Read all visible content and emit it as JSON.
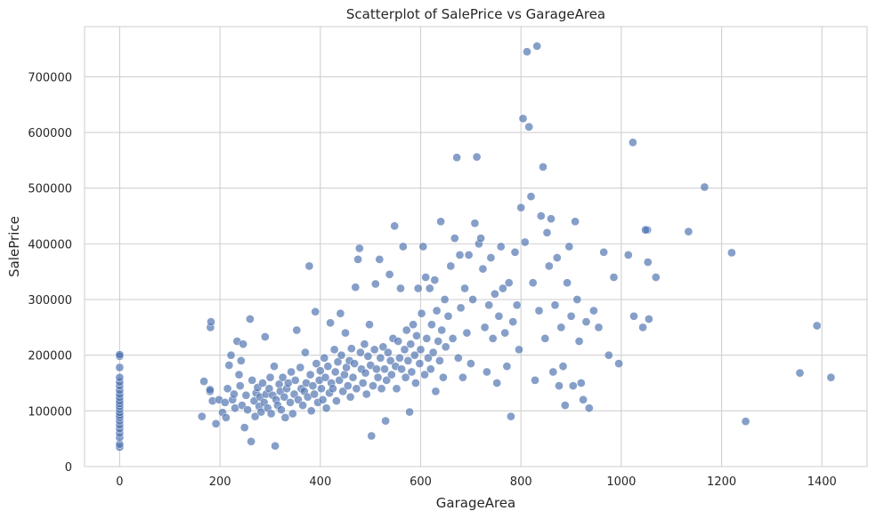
{
  "chart_data": {
    "type": "scatter",
    "title": "Scatterplot of SalePrice vs GarageArea",
    "xlabel": "GarageArea",
    "ylabel": "SalePrice",
    "xlim": [
      -70,
      1490
    ],
    "ylim": [
      0,
      790000
    ],
    "xticks": [
      0,
      200,
      400,
      600,
      800,
      1000,
      1200,
      1400
    ],
    "yticks": [
      0,
      100000,
      200000,
      300000,
      400000,
      500000,
      600000,
      700000
    ],
    "grid": true,
    "point_color": "#4c72b0",
    "series": [
      {
        "points": [
          [
            0,
            35000
          ],
          [
            0,
            40000
          ],
          [
            0,
            52000
          ],
          [
            0,
            60000
          ],
          [
            0,
            68000
          ],
          [
            0,
            75000
          ],
          [
            0,
            82000
          ],
          [
            0,
            88000
          ],
          [
            0,
            92000
          ],
          [
            0,
            97000
          ],
          [
            0,
            103000
          ],
          [
            0,
            108000
          ],
          [
            0,
            113000
          ],
          [
            0,
            118000
          ],
          [
            0,
            124000
          ],
          [
            0,
            130000
          ],
          [
            0,
            137000
          ],
          [
            0,
            145000
          ],
          [
            0,
            152000
          ],
          [
            0,
            160000
          ],
          [
            0,
            178000
          ],
          [
            0,
            198000
          ],
          [
            0,
            201000
          ],
          [
            164,
            90000
          ],
          [
            168,
            153000
          ],
          [
            180,
            135000
          ],
          [
            180,
            138000
          ],
          [
            181,
            250000
          ],
          [
            182,
            260000
          ],
          [
            185,
            118000
          ],
          [
            192,
            77000
          ],
          [
            198,
            120000
          ],
          [
            205,
            97000
          ],
          [
            210,
            115000
          ],
          [
            212,
            88000
          ],
          [
            215,
            140000
          ],
          [
            218,
            182000
          ],
          [
            222,
            200000
          ],
          [
            225,
            120000
          ],
          [
            228,
            130000
          ],
          [
            230,
            105000
          ],
          [
            234,
            225000
          ],
          [
            238,
            165000
          ],
          [
            240,
            145000
          ],
          [
            242,
            190000
          ],
          [
            244,
            110000
          ],
          [
            246,
            220000
          ],
          [
            249,
            70000
          ],
          [
            252,
            128000
          ],
          [
            255,
            102000
          ],
          [
            260,
            265000
          ],
          [
            262,
            45000
          ],
          [
            264,
            155000
          ],
          [
            268,
            118000
          ],
          [
            270,
            90000
          ],
          [
            272,
            132000
          ],
          [
            275,
            142000
          ],
          [
            278,
            108000
          ],
          [
            280,
            125000
          ],
          [
            282,
            98000
          ],
          [
            285,
            150000
          ],
          [
            288,
            115000
          ],
          [
            290,
            233000
          ],
          [
            292,
            130000
          ],
          [
            295,
            105000
          ],
          [
            298,
            140000
          ],
          [
            300,
            160000
          ],
          [
            302,
            95000
          ],
          [
            305,
            128000
          ],
          [
            308,
            180000
          ],
          [
            310,
            37000
          ],
          [
            312,
            120000
          ],
          [
            315,
            110000
          ],
          [
            318,
            148000
          ],
          [
            320,
            135000
          ],
          [
            322,
            102000
          ],
          [
            325,
            160000
          ],
          [
            328,
            125000
          ],
          [
            330,
            88000
          ],
          [
            333,
            140000
          ],
          [
            336,
            150000
          ],
          [
            340,
            115000
          ],
          [
            342,
            170000
          ],
          [
            345,
            95000
          ],
          [
            348,
            130000
          ],
          [
            350,
            155000
          ],
          [
            353,
            245000
          ],
          [
            356,
            120000
          ],
          [
            360,
            178000
          ],
          [
            362,
            140000
          ],
          [
            365,
            110000
          ],
          [
            368,
            135000
          ],
          [
            370,
            205000
          ],
          [
            372,
            150000
          ],
          [
            375,
            125000
          ],
          [
            378,
            360000
          ],
          [
            380,
            165000
          ],
          [
            382,
            100000
          ],
          [
            385,
            145000
          ],
          [
            388,
            130000
          ],
          [
            390,
            278000
          ],
          [
            392,
            185000
          ],
          [
            395,
            115000
          ],
          [
            398,
            155000
          ],
          [
            400,
            172000
          ],
          [
            402,
            140000
          ],
          [
            405,
            120000
          ],
          [
            408,
            195000
          ],
          [
            410,
            160000
          ],
          [
            412,
            105000
          ],
          [
            415,
            180000
          ],
          [
            418,
            132000
          ],
          [
            420,
            258000
          ],
          [
            422,
            150000
          ],
          [
            425,
            140000
          ],
          [
            428,
            210000
          ],
          [
            430,
            170000
          ],
          [
            432,
            118000
          ],
          [
            435,
            188000
          ],
          [
            438,
            155000
          ],
          [
            440,
            275000
          ],
          [
            442,
            200000
          ],
          [
            445,
            135000
          ],
          [
            448,
            165000
          ],
          [
            450,
            240000
          ],
          [
            452,
            178000
          ],
          [
            455,
            145000
          ],
          [
            458,
            190000
          ],
          [
            460,
            125000
          ],
          [
            462,
            212000
          ],
          [
            465,
            160000
          ],
          [
            468,
            185000
          ],
          [
            470,
            322000
          ],
          [
            472,
            140000
          ],
          [
            475,
            372000
          ],
          [
            478,
            392000
          ],
          [
            480,
            205000
          ],
          [
            482,
            175000
          ],
          [
            485,
            150000
          ],
          [
            488,
            220000
          ],
          [
            490,
            168000
          ],
          [
            492,
            130000
          ],
          [
            495,
            198000
          ],
          [
            498,
            255000
          ],
          [
            500,
            182000
          ],
          [
            502,
            55000
          ],
          [
            505,
            145000
          ],
          [
            508,
            210000
          ],
          [
            510,
            328000
          ],
          [
            512,
            175000
          ],
          [
            515,
            160000
          ],
          [
            518,
            372000
          ],
          [
            520,
            195000
          ],
          [
            522,
            140000
          ],
          [
            525,
            215000
          ],
          [
            528,
            175000
          ],
          [
            530,
            82000
          ],
          [
            532,
            155000
          ],
          [
            535,
            205000
          ],
          [
            538,
            345000
          ],
          [
            540,
            190000
          ],
          [
            542,
            165000
          ],
          [
            545,
            230000
          ],
          [
            548,
            432000
          ],
          [
            550,
            180000
          ],
          [
            552,
            140000
          ],
          [
            555,
            225000
          ],
          [
            558,
            195000
          ],
          [
            560,
            320000
          ],
          [
            562,
            175000
          ],
          [
            565,
            395000
          ],
          [
            568,
            210000
          ],
          [
            570,
            160000
          ],
          [
            572,
            245000
          ],
          [
            575,
            190000
          ],
          [
            578,
            98000
          ],
          [
            580,
            220000
          ],
          [
            582,
            170000
          ],
          [
            585,
            255000
          ],
          [
            588,
            200000
          ],
          [
            590,
            150000
          ],
          [
            592,
            235000
          ],
          [
            595,
            320000
          ],
          [
            598,
            185000
          ],
          [
            600,
            210000
          ],
          [
            602,
            275000
          ],
          [
            605,
            395000
          ],
          [
            608,
            165000
          ],
          [
            610,
            340000
          ],
          [
            612,
            230000
          ],
          [
            615,
            195000
          ],
          [
            618,
            320000
          ],
          [
            620,
            175000
          ],
          [
            622,
            255000
          ],
          [
            625,
            205000
          ],
          [
            628,
            335000
          ],
          [
            630,
            135000
          ],
          [
            632,
            280000
          ],
          [
            635,
            225000
          ],
          [
            638,
            190000
          ],
          [
            640,
            440000
          ],
          [
            642,
            245000
          ],
          [
            645,
            160000
          ],
          [
            648,
            300000
          ],
          [
            650,
            215000
          ],
          [
            655,
            270000
          ],
          [
            660,
            360000
          ],
          [
            664,
            230000
          ],
          [
            668,
            410000
          ],
          [
            672,
            555000
          ],
          [
            675,
            195000
          ],
          [
            678,
            380000
          ],
          [
            680,
            285000
          ],
          [
            684,
            160000
          ],
          [
            688,
            320000
          ],
          [
            692,
            240000
          ],
          [
            696,
            380000
          ],
          [
            700,
            185000
          ],
          [
            704,
            300000
          ],
          [
            708,
            437000
          ],
          [
            712,
            556000
          ],
          [
            716,
            400000
          ],
          [
            720,
            410000
          ],
          [
            724,
            355000
          ],
          [
            728,
            250000
          ],
          [
            732,
            170000
          ],
          [
            736,
            290000
          ],
          [
            740,
            375000
          ],
          [
            744,
            230000
          ],
          [
            748,
            310000
          ],
          [
            752,
            150000
          ],
          [
            756,
            270000
          ],
          [
            760,
            395000
          ],
          [
            764,
            320000
          ],
          [
            768,
            240000
          ],
          [
            772,
            180000
          ],
          [
            776,
            330000
          ],
          [
            780,
            90000
          ],
          [
            784,
            260000
          ],
          [
            788,
            385000
          ],
          [
            792,
            290000
          ],
          [
            796,
            210000
          ],
          [
            800,
            465000
          ],
          [
            804,
            625000
          ],
          [
            808,
            403000
          ],
          [
            812,
            745000
          ],
          [
            816,
            610000
          ],
          [
            820,
            485000
          ],
          [
            824,
            330000
          ],
          [
            828,
            155000
          ],
          [
            832,
            755000
          ],
          [
            836,
            280000
          ],
          [
            840,
            450000
          ],
          [
            844,
            538000
          ],
          [
            848,
            230000
          ],
          [
            852,
            420000
          ],
          [
            856,
            360000
          ],
          [
            860,
            445000
          ],
          [
            864,
            170000
          ],
          [
            868,
            290000
          ],
          [
            872,
            375000
          ],
          [
            876,
            145000
          ],
          [
            880,
            250000
          ],
          [
            884,
            180000
          ],
          [
            888,
            110000
          ],
          [
            892,
            330000
          ],
          [
            896,
            395000
          ],
          [
            900,
            270000
          ],
          [
            904,
            145000
          ],
          [
            908,
            440000
          ],
          [
            912,
            300000
          ],
          [
            916,
            225000
          ],
          [
            920,
            150000
          ],
          [
            924,
            120000
          ],
          [
            930,
            260000
          ],
          [
            936,
            105000
          ],
          [
            945,
            280000
          ],
          [
            955,
            250000
          ],
          [
            965,
            385000
          ],
          [
            975,
            200000
          ],
          [
            985,
            340000
          ],
          [
            995,
            185000
          ],
          [
            1014,
            380000
          ],
          [
            1025,
            270000
          ],
          [
            1043,
            250000
          ],
          [
            1052,
            425000
          ],
          [
            1053,
            367000
          ],
          [
            1055,
            265000
          ],
          [
            1069,
            340000
          ],
          [
            1134,
            422000
          ],
          [
            1166,
            502000
          ],
          [
            1220,
            384000
          ],
          [
            1248,
            81000
          ],
          [
            1356,
            168000
          ],
          [
            1390,
            253000
          ],
          [
            1418,
            160000
          ],
          [
            1023,
            582000
          ],
          [
            1048,
            425000
          ]
        ]
      }
    ]
  }
}
